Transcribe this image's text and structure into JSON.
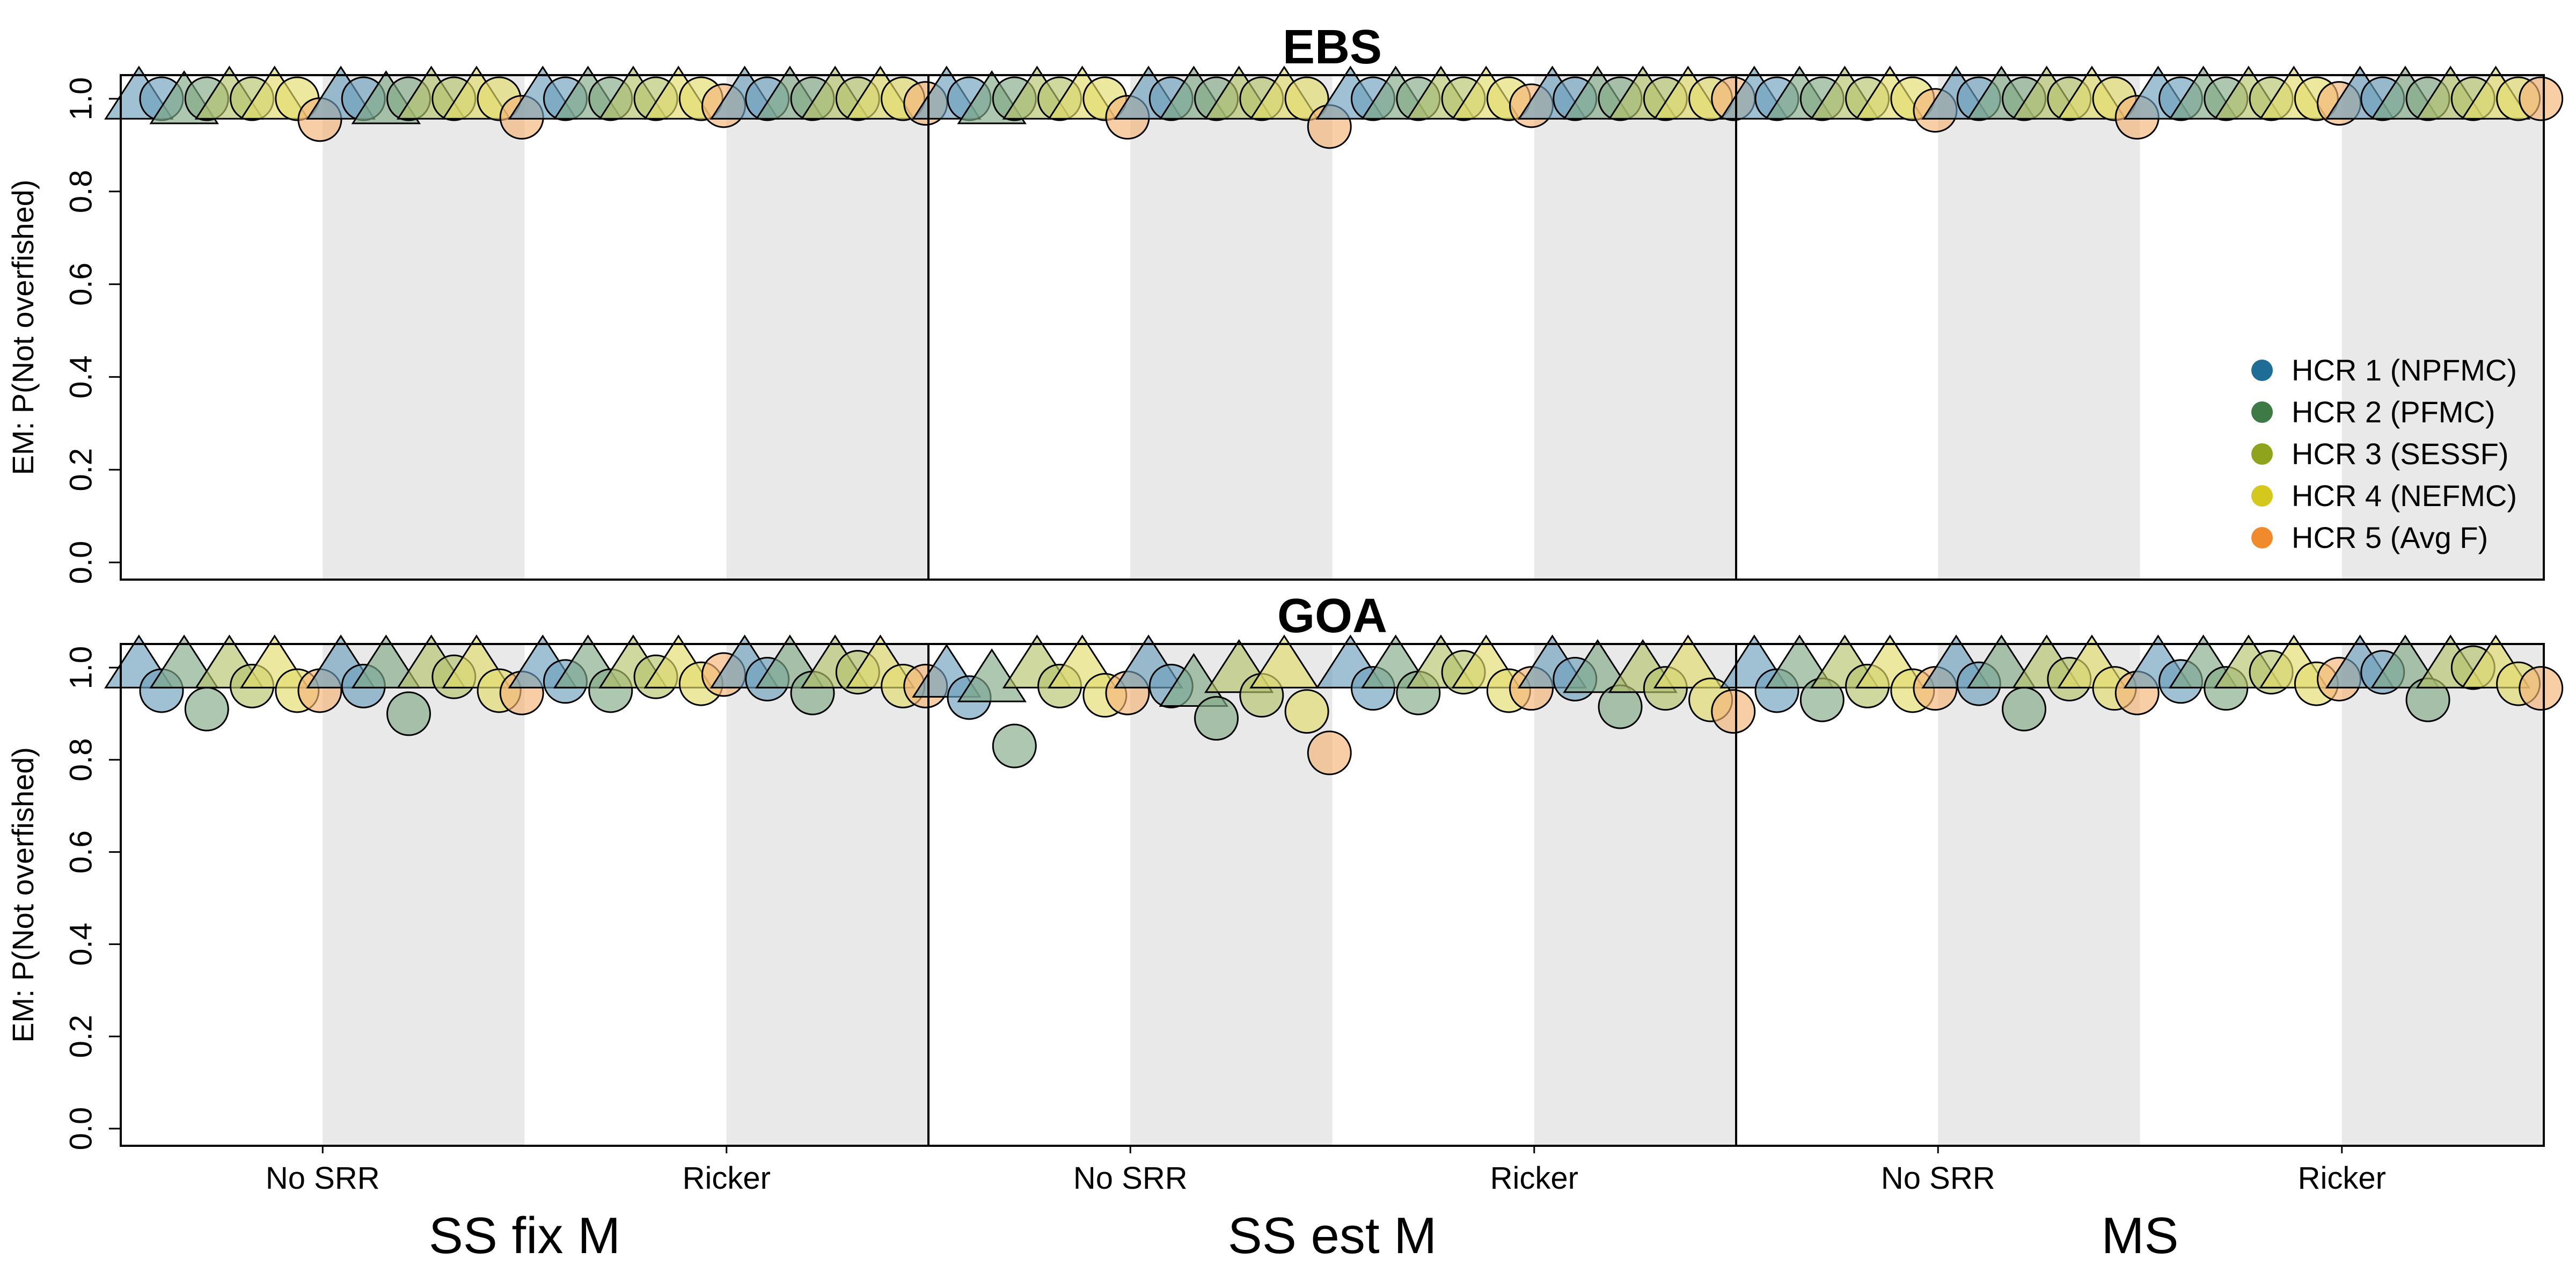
{
  "chart_data": {
    "type": "scatter",
    "ylabel": "EM: P(Not overfished)",
    "ylim": [
      0,
      1
    ],
    "yticks": [
      "0.0",
      "0.2",
      "0.4",
      "0.6",
      "0.8",
      "1.0"
    ],
    "groups": [
      "SS fix M",
      "SS est M",
      "MS"
    ],
    "srr": [
      "No SRR",
      "Ricker"
    ],
    "legend": [
      {
        "label": "HCR 1 (NPFMC)",
        "color": "#1f6d97"
      },
      {
        "label": "HCR 2 (PFMC)",
        "color": "#3d7a45"
      },
      {
        "label": "HCR 3 (SESSF)",
        "color": "#8fa31c"
      },
      {
        "label": "HCR 4 (NEFMC)",
        "color": "#d4c81f"
      },
      {
        "label": "HCR 5 (Avg F)",
        "color": "#f08a2c"
      }
    ],
    "marker_note": "triangle and circle markers per HCR within each SRR panel",
    "panels": [
      {
        "title": "EBS",
        "values": [
          [
            [
              1.0,
              1.0,
              0.99,
              1.0,
              1.0,
              1.0,
              1.0,
              1.0,
              0.955
            ],
            [
              1.0,
              1.0,
              0.99,
              1.0,
              1.0,
              1.0,
              1.0,
              1.0,
              0.96
            ]
          ],
          [
            [
              1.0,
              1.0,
              1.0,
              1.0,
              1.0,
              1.0,
              1.0,
              1.0,
              0.985
            ],
            [
              1.0,
              1.0,
              1.0,
              1.0,
              1.0,
              1.0,
              1.0,
              1.0,
              0.99
            ]
          ],
          [
            [
              1.0,
              1.0,
              0.99,
              1.0,
              1.0,
              1.0,
              1.0,
              1.0,
              0.96
            ],
            [
              1.0,
              1.0,
              1.0,
              1.0,
              1.0,
              1.0,
              1.0,
              1.0,
              0.94
            ]
          ],
          [
            [
              1.0,
              1.0,
              1.0,
              1.0,
              1.0,
              1.0,
              1.0,
              1.0,
              0.985
            ],
            [
              1.0,
              1.0,
              1.0,
              1.0,
              1.0,
              1.0,
              1.0,
              1.0,
              1.0
            ]
          ],
          [
            [
              1.0,
              1.0,
              1.0,
              1.0,
              1.0,
              1.0,
              1.0,
              1.0,
              0.975
            ],
            [
              1.0,
              1.0,
              1.0,
              1.0,
              1.0,
              1.0,
              1.0,
              1.0,
              0.96
            ]
          ],
          [
            [
              1.0,
              1.0,
              1.0,
              1.0,
              1.0,
              1.0,
              1.0,
              1.0,
              0.99
            ],
            [
              1.0,
              1.0,
              1.0,
              1.0,
              1.0,
              1.0,
              1.0,
              1.0,
              1.0
            ]
          ]
        ]
      },
      {
        "title": "GOA",
        "values": [
          [
            [
              1.0,
              0.95,
              1.0,
              0.91,
              1.0,
              0.96,
              1.0,
              0.95,
              0.95
            ],
            [
              1.0,
              0.96,
              1.0,
              0.9,
              1.0,
              0.98,
              1.0,
              0.95,
              0.945
            ]
          ],
          [
            [
              1.0,
              0.97,
              1.0,
              0.95,
              1.0,
              0.98,
              1.0,
              0.965,
              0.985
            ],
            [
              1.0,
              0.975,
              1.0,
              0.945,
              1.0,
              0.99,
              1.0,
              0.96,
              0.96
            ]
          ],
          [
            [
              0.98,
              0.935,
              0.97,
              0.83,
              1.0,
              0.96,
              1.0,
              0.94,
              0.945
            ],
            [
              1.0,
              0.96,
              0.96,
              0.89,
              0.99,
              0.94,
              1.0,
              0.905,
              0.815
            ]
          ],
          [
            [
              1.0,
              0.955,
              1.0,
              0.945,
              1.0,
              0.99,
              1.0,
              0.95,
              0.955
            ],
            [
              1.0,
              0.975,
              0.99,
              0.915,
              0.99,
              0.955,
              1.0,
              0.93,
              0.905
            ]
          ],
          [
            [
              1.0,
              0.95,
              1.0,
              0.93,
              1.0,
              0.96,
              1.0,
              0.95,
              0.955
            ],
            [
              1.0,
              0.965,
              1.0,
              0.91,
              1.0,
              0.975,
              1.0,
              0.955,
              0.945
            ]
          ],
          [
            [
              1.0,
              0.97,
              1.0,
              0.955,
              1.0,
              0.99,
              1.0,
              0.965,
              0.975
            ],
            [
              1.0,
              0.99,
              1.0,
              0.93,
              1.0,
              1.0,
              1.0,
              0.965,
              0.955
            ]
          ]
        ]
      }
    ]
  }
}
